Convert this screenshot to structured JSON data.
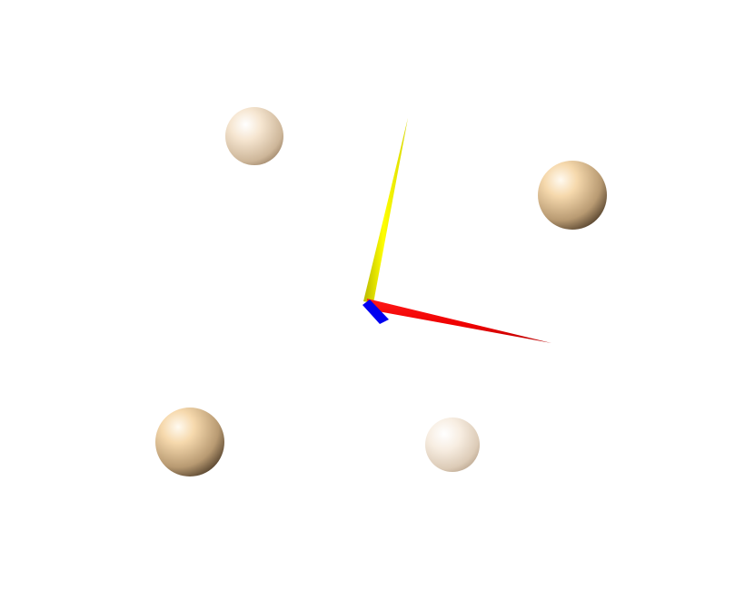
{
  "scene": {
    "background": "#ffffff",
    "atoms": [
      {
        "name": "atom-sphere-1",
        "color": "#f3dcbd",
        "depth": "back"
      },
      {
        "name": "atom-sphere-2",
        "color": "#eacba0",
        "depth": "front"
      },
      {
        "name": "atom-sphere-3",
        "color": "#eacba0",
        "depth": "front"
      },
      {
        "name": "atom-sphere-4",
        "color": "#f5e8d8",
        "depth": "back"
      }
    ],
    "axes": [
      {
        "name": "x-axis-arrow",
        "color": "#ff0000"
      },
      {
        "name": "y-axis-arrow",
        "color": "#ffff00"
      },
      {
        "name": "z-axis-arrow",
        "color": "#0000ff"
      }
    ]
  }
}
